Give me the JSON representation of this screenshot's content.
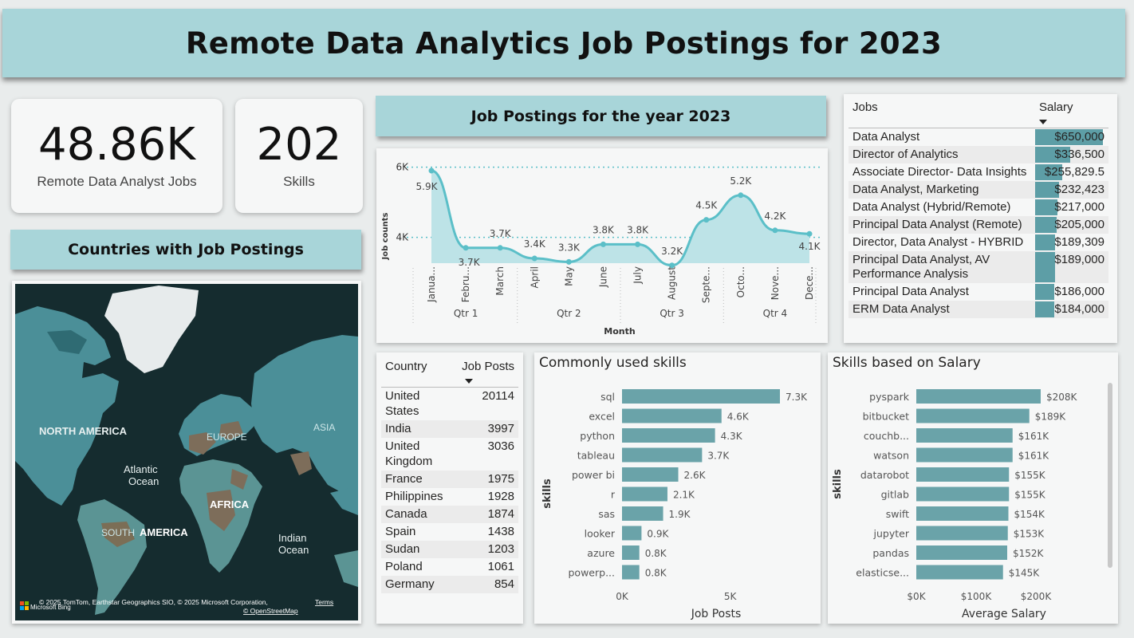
{
  "title": "Remote Data Analytics Job Postings for 2023",
  "kpis": [
    {
      "value": "48.86K",
      "label": "Remote Data Analyst Jobs"
    },
    {
      "value": "202",
      "label": "Skills"
    }
  ],
  "countries_header": "Countries with Job Postings",
  "map": {
    "labels": {
      "north_america": "NORTH AMERICA",
      "europe": "EUROPE",
      "asia": "ASIA",
      "atlantic": "Atlantic",
      "ocean": "Ocean",
      "africa": "AFRICA",
      "south": "SOUTH",
      "america": "AMERICA",
      "indian": "Indian",
      "indian_ocean": "Ocean"
    },
    "attribution": "© 2025 TomTom, Earthstar Geographics SIO, © 2025 Microsoft Corporation,",
    "terms": "Terms",
    "osm": "© OpenStreetMap",
    "bing": "Microsoft Bing"
  },
  "line_chart_header": "Job Postings for the year 2023",
  "chart_data": [
    {
      "type": "area",
      "title": "Job Postings for the year 2023",
      "xlabel": "Month",
      "ylabel": "Job counts",
      "categories": [
        "Janua...",
        "Febru...",
        "March",
        "April",
        "May",
        "June",
        "July",
        "August",
        "Septe...",
        "Octo...",
        "Nove...",
        "Dece..."
      ],
      "values": [
        5.9,
        3.7,
        3.7,
        3.4,
        3.3,
        3.8,
        3.8,
        3.2,
        4.5,
        5.2,
        4.2,
        4.1
      ],
      "data_labels": [
        "5.9K",
        "3.7K",
        "3.7K",
        "3.4K",
        "3.3K",
        "3.8K",
        "3.8K",
        "3.2K",
        "4.5K",
        "5.2K",
        "4.2K",
        "4.1K"
      ],
      "quarters": [
        "Qtr 1",
        "Qtr 2",
        "Qtr 3",
        "Qtr 4"
      ],
      "y_ticks": [
        "6K",
        "4K"
      ],
      "y_tick_values": [
        6,
        4
      ],
      "ylim": [
        2.9,
        6.4
      ],
      "grid": true,
      "color": "#5bbfc8"
    },
    {
      "type": "bar",
      "title": "Commonly used skills",
      "xlabel": "Job Posts",
      "ylabel": "skills",
      "categories": [
        "sql",
        "excel",
        "python",
        "tableau",
        "power bi",
        "r",
        "sas",
        "looker",
        "azure",
        "powerp..."
      ],
      "values": [
        7.3,
        4.6,
        4.3,
        3.7,
        2.6,
        2.1,
        1.9,
        0.9,
        0.8,
        0.8
      ],
      "data_labels": [
        "7.3K",
        "4.6K",
        "4.3K",
        "3.7K",
        "2.6K",
        "2.1K",
        "1.9K",
        "0.9K",
        "0.8K",
        "0.8K"
      ],
      "x_ticks": [
        "0K",
        "5K"
      ],
      "x_tick_values": [
        0,
        5
      ],
      "xlim": [
        0,
        7.3
      ],
      "color": "#6aa3a9"
    },
    {
      "type": "bar",
      "title": "Skills based on Salary",
      "xlabel": "Average Salary",
      "ylabel": "skills",
      "categories": [
        "pyspark",
        "bitbucket",
        "couchb...",
        "watson",
        "datarobot",
        "gitlab",
        "swift",
        "jupyter",
        "pandas",
        "elasticse..."
      ],
      "values": [
        208,
        189,
        161,
        161,
        155,
        155,
        154,
        153,
        152,
        145
      ],
      "data_labels": [
        "$208K",
        "$189K",
        "$161K",
        "$161K",
        "$155K",
        "$155K",
        "$154K",
        "$153K",
        "$152K",
        "$145K"
      ],
      "x_ticks": [
        "$0K",
        "$100K",
        "$200K"
      ],
      "x_tick_values": [
        0,
        100,
        200
      ],
      "xlim": [
        0,
        208
      ],
      "color": "#6aa3a9"
    }
  ],
  "jobs_table": {
    "headers": [
      "Jobs",
      "Salary"
    ],
    "max": 650000,
    "rows": [
      {
        "job": "Data Analyst",
        "salary": "$650,000",
        "value": 650000
      },
      {
        "job": "Director of Analytics",
        "salary": "$336,500",
        "value": 336500
      },
      {
        "job": "Associate Director- Data Insights",
        "salary": "$255,829.5",
        "value": 255829.5
      },
      {
        "job": "Data Analyst, Marketing",
        "salary": "$232,423",
        "value": 232423
      },
      {
        "job": "Data Analyst (Hybrid/Remote)",
        "salary": "$217,000",
        "value": 217000
      },
      {
        "job": "Principal Data Analyst (Remote)",
        "salary": "$205,000",
        "value": 205000
      },
      {
        "job": "Director, Data Analyst - HYBRID",
        "salary": "$189,309",
        "value": 189309
      },
      {
        "job": "Principal Data Analyst, AV Performance Analysis",
        "salary": "$189,000",
        "value": 189000
      },
      {
        "job": "Principal Data Analyst",
        "salary": "$186,000",
        "value": 186000
      },
      {
        "job": "ERM Data Analyst",
        "salary": "$184,000",
        "value": 184000
      }
    ]
  },
  "country_table": {
    "headers": [
      "Country",
      "Job Posts"
    ],
    "rows": [
      {
        "country": "United States",
        "posts": "20114"
      },
      {
        "country": "India",
        "posts": "3997"
      },
      {
        "country": "United Kingdom",
        "posts": "3036"
      },
      {
        "country": "France",
        "posts": "1975"
      },
      {
        "country": "Philippines",
        "posts": "1928"
      },
      {
        "country": "Canada",
        "posts": "1874"
      },
      {
        "country": "Spain",
        "posts": "1438"
      },
      {
        "country": "Sudan",
        "posts": "1203"
      },
      {
        "country": "Poland",
        "posts": "1061"
      },
      {
        "country": "Germany",
        "posts": "854"
      }
    ]
  }
}
